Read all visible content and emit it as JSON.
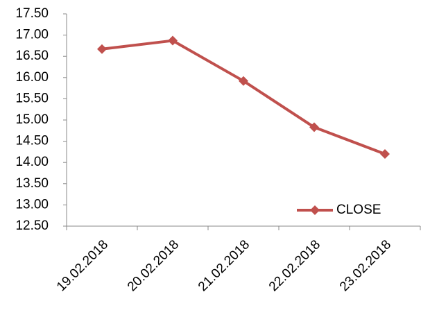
{
  "chart_data": {
    "type": "line",
    "categories": [
      "19.02.2018",
      "20.02.2018",
      "21.02.2018",
      "22.02.2018",
      "23.02.2018"
    ],
    "series": [
      {
        "name": "CLOSE",
        "color": "#c0504d",
        "values": [
          16.67,
          16.87,
          15.92,
          14.83,
          14.2
        ]
      }
    ],
    "ylim": [
      12.5,
      17.5
    ],
    "yticks": [
      {
        "value": 12.5,
        "label": "12.50"
      },
      {
        "value": 13,
        "label": "13.00"
      },
      {
        "value": 13.5,
        "label": "13.50"
      },
      {
        "value": 14,
        "label": "14.00"
      },
      {
        "value": 14.5,
        "label": "14.50"
      },
      {
        "value": 15,
        "label": "15.00"
      },
      {
        "value": 15.5,
        "label": "15.50"
      },
      {
        "value": 16,
        "label": "16.00"
      },
      {
        "value": 16.5,
        "label": "16.50"
      },
      {
        "value": 17,
        "label": "17.00"
      },
      {
        "value": 17.5,
        "label": "17.50"
      }
    ],
    "grid": false,
    "legend": "lower right"
  }
}
